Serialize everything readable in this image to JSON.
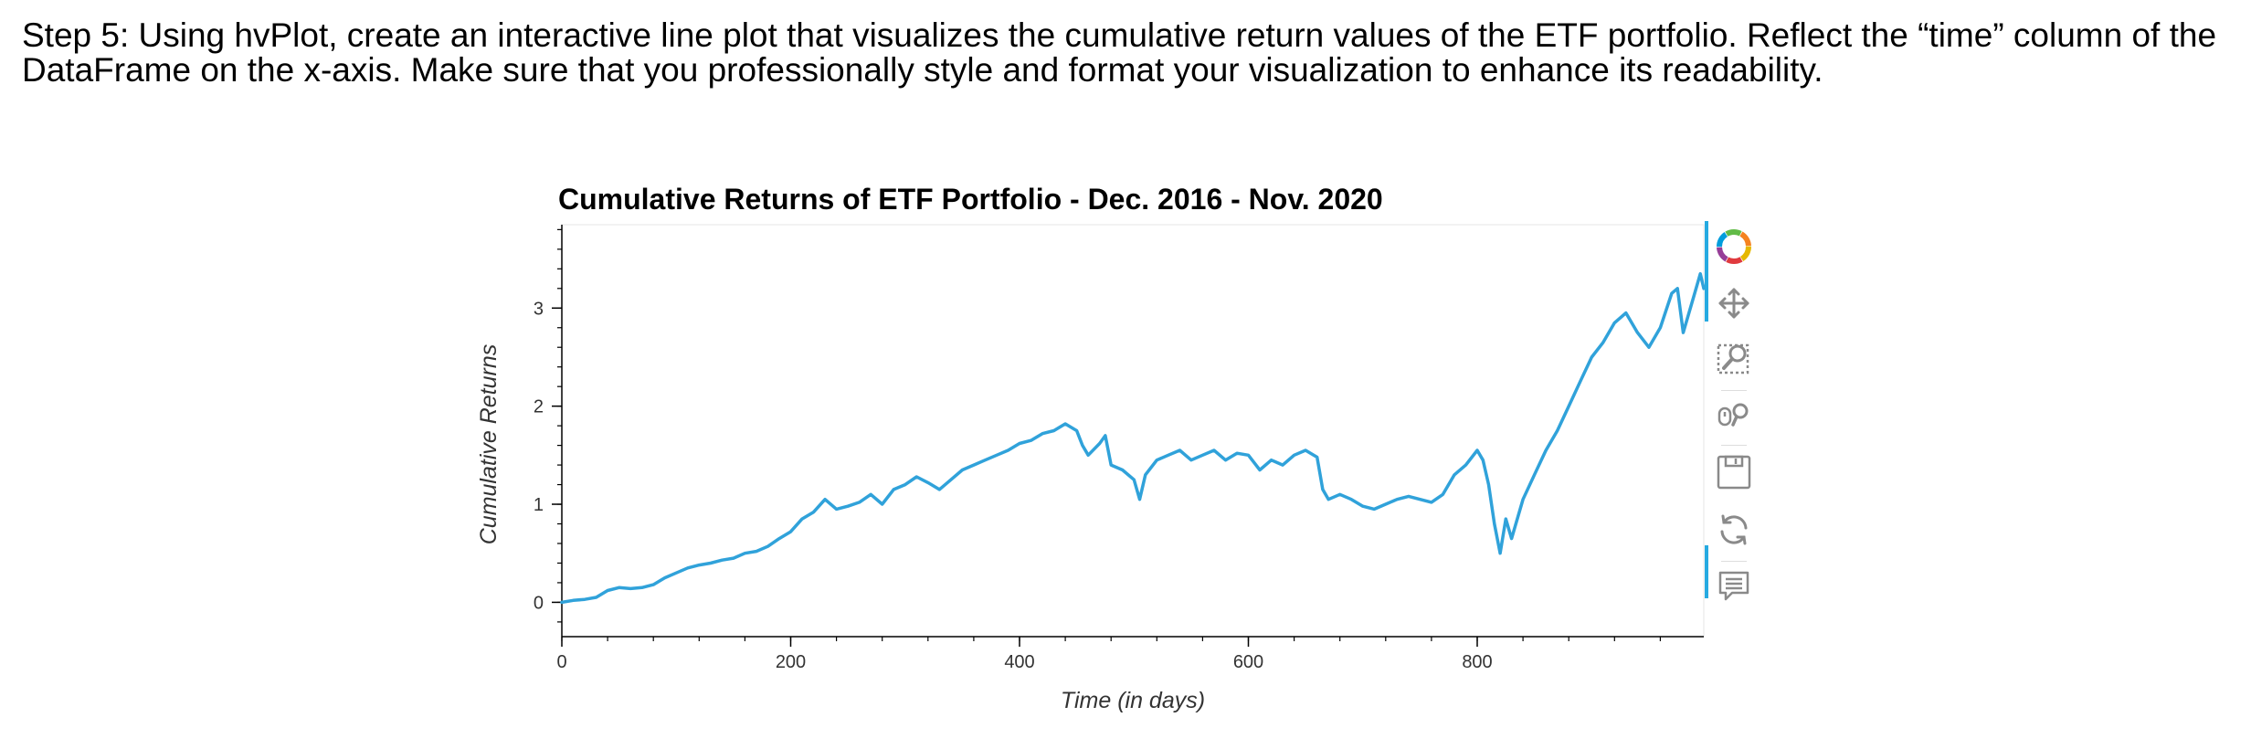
{
  "instructions": {
    "text": "Step 5: Using hvPlot, create an interactive line plot that visualizes the cumulative return values of the ETF portfolio. Reflect the “time” column of the DataFrame on the x-axis. Make sure that you professionally style and format your visualization to enhance its readability."
  },
  "chart_data": {
    "type": "line",
    "title": "Cumulative Returns of ETF Portfolio - Dec. 2016 - Nov. 2020",
    "xlabel": "Time (in days)",
    "ylabel": "Cumulative Returns",
    "xlim": [
      0,
      998
    ],
    "ylim": [
      -0.35,
      3.85
    ],
    "x_ticks": [
      0,
      200,
      400,
      600,
      800
    ],
    "y_ticks": [
      0,
      1,
      2,
      3
    ],
    "x_tick_labels": [
      "0",
      "200",
      "400",
      "600",
      "800"
    ],
    "y_tick_labels": [
      "0",
      "1",
      "2",
      "3"
    ],
    "grid": false,
    "line_color": "#30a2da",
    "series": [
      {
        "x": [
          0,
          10,
          20,
          30,
          40,
          50,
          60,
          70,
          80,
          90,
          100,
          110,
          120,
          130,
          140,
          150,
          160,
          170,
          180,
          190,
          200,
          210,
          220,
          230,
          240,
          250,
          260,
          270,
          280,
          290,
          300,
          310,
          320,
          330,
          340,
          350,
          360,
          370,
          380,
          390,
          400,
          410,
          420,
          430,
          440,
          450,
          455,
          460,
          470,
          475,
          480,
          490,
          500,
          505,
          510,
          520,
          530,
          540,
          550,
          560,
          570,
          580,
          590,
          600,
          610,
          620,
          630,
          640,
          650,
          660,
          665,
          670,
          680,
          690,
          700,
          710,
          720,
          730,
          740,
          750,
          760,
          770,
          780,
          790,
          800,
          805,
          810,
          815,
          820,
          825,
          830,
          840,
          850,
          860,
          870,
          880,
          890,
          900,
          910,
          920,
          930,
          940,
          950,
          960,
          970,
          975,
          980,
          990,
          995,
          998
        ],
        "y": [
          0.0,
          0.02,
          0.03,
          0.05,
          0.12,
          0.15,
          0.14,
          0.15,
          0.18,
          0.25,
          0.3,
          0.35,
          0.38,
          0.4,
          0.43,
          0.45,
          0.5,
          0.52,
          0.57,
          0.65,
          0.72,
          0.85,
          0.92,
          1.05,
          0.95,
          0.98,
          1.02,
          1.1,
          1.0,
          1.15,
          1.2,
          1.28,
          1.22,
          1.15,
          1.25,
          1.35,
          1.4,
          1.45,
          1.5,
          1.55,
          1.62,
          1.65,
          1.72,
          1.75,
          1.82,
          1.75,
          1.6,
          1.5,
          1.62,
          1.7,
          1.4,
          1.35,
          1.25,
          1.05,
          1.3,
          1.45,
          1.5,
          1.55,
          1.45,
          1.5,
          1.55,
          1.45,
          1.52,
          1.5,
          1.35,
          1.45,
          1.4,
          1.5,
          1.55,
          1.48,
          1.15,
          1.05,
          1.1,
          1.05,
          0.98,
          0.95,
          1.0,
          1.05,
          1.08,
          1.05,
          1.02,
          1.1,
          1.3,
          1.4,
          1.55,
          1.45,
          1.2,
          0.8,
          0.5,
          0.85,
          0.65,
          1.05,
          1.3,
          1.55,
          1.75,
          2.0,
          2.25,
          2.5,
          2.65,
          2.85,
          2.95,
          2.75,
          2.6,
          2.8,
          3.15,
          3.2,
          2.75,
          3.15,
          3.35,
          3.2
        ]
      }
    ]
  },
  "toolbar": {
    "tools": [
      "bokeh-logo-icon",
      "pan-icon",
      "box-zoom-icon",
      "wheel-zoom-icon",
      "save-icon",
      "reset-icon",
      "hover-icon"
    ]
  }
}
